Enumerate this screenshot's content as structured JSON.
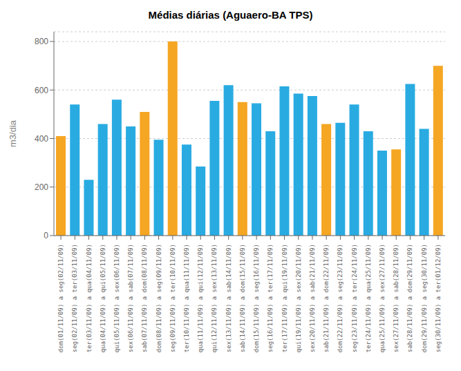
{
  "chart_data": {
    "type": "bar",
    "title": "Médias diárias (Aguaero-BA TPS)",
    "ylabel": "m3/dia",
    "categories": [
      "dom(01/11/09) a seg(02/11/09)",
      "seg(02/11/09) a ter(03/11/09)",
      "ter(03/11/09) a qua(04/11/09)",
      "qua(04/11/09) a qui(05/11/09)",
      "qui(05/11/09) a sex(06/11/09)",
      "sex(06/11/09) a sab(07/11/09)",
      "sab(07/11/09) a dom(08/11/09)",
      "dom(08/11/09) a seg(09/11/09)",
      "seg(09/11/09) a ter(10/11/09)",
      "ter(10/11/09) a qua(11/11/09)",
      "qua(11/11/09) a qui(12/11/09)",
      "qui(12/11/09) a sex(13/11/09)",
      "sex(13/11/09) a sab(14/11/09)",
      "sab(14/11/09) a dom(15/11/09)",
      "dom(15/11/09) a seg(16/11/09)",
      "seg(16/11/09) a ter(17/11/09)",
      "ter(17/11/09) a qui(19/11/09)",
      "qui(19/11/09) a sex(20/11/09)",
      "sex(20/11/09) a sab(21/11/09)",
      "sab(21/11/09) a dom(22/11/09)",
      "dom(22/11/09) a seg(23/11/09)",
      "seg(23/11/09) a ter(24/11/09)",
      "ter(24/11/09) a qua(25/11/09)",
      "qua(25/11/09) a sex(27/11/09)",
      "sex(27/11/09) a sab(28/11/09)",
      "sab(28/11/09) a dom(29/11/09)",
      "dom(29/11/09) a seg(30/11/09)",
      "seg(30/11/09) a ter(01/12/09)"
    ],
    "values": [
      410,
      540,
      230,
      460,
      560,
      450,
      510,
      395,
      800,
      375,
      285,
      555,
      620,
      550,
      545,
      430,
      615,
      585,
      575,
      460,
      465,
      540,
      430,
      350,
      355,
      625,
      440,
      700
    ],
    "colors": [
      "#F5A623",
      "#29ABE2",
      "#29ABE2",
      "#29ABE2",
      "#29ABE2",
      "#29ABE2",
      "#F5A623",
      "#29ABE2",
      "#F5A623",
      "#29ABE2",
      "#29ABE2",
      "#29ABE2",
      "#29ABE2",
      "#F5A623",
      "#29ABE2",
      "#29ABE2",
      "#29ABE2",
      "#29ABE2",
      "#29ABE2",
      "#F5A623",
      "#29ABE2",
      "#29ABE2",
      "#29ABE2",
      "#29ABE2",
      "#F5A623",
      "#29ABE2",
      "#29ABE2",
      "#F5A623"
    ],
    "ylim": [
      0,
      840
    ],
    "yticks": [
      0,
      200,
      400,
      600,
      800
    ],
    "grid": true
  }
}
